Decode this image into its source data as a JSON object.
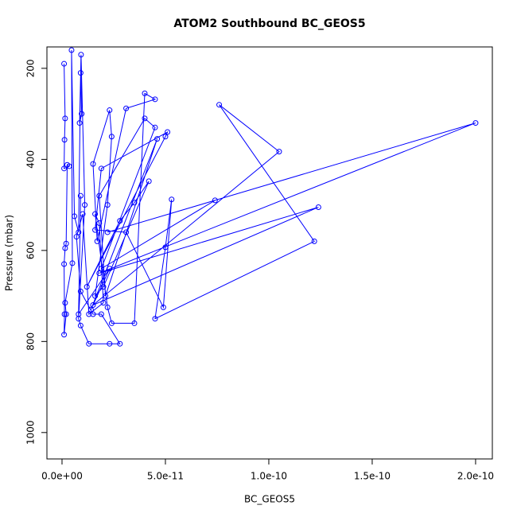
{
  "chart_data": {
    "type": "line",
    "title": "ATOM2 Southbound BC_GEOS5",
    "x_label": "BC_GEOS5",
    "y_label": "Pressure (mbar)",
    "xlim": [
      -7.3e-12,
      2.081e-10
    ],
    "ylim": [
      1058,
      153
    ],
    "xticks": [
      {
        "value": 0,
        "label": "0.0e+00"
      },
      {
        "value": 5e-11,
        "label": "5.0e-11"
      },
      {
        "value": 1e-10,
        "label": "1.0e-10"
      },
      {
        "value": 1.5e-10,
        "label": "1.5e-10"
      },
      {
        "value": 2e-10,
        "label": "2.0e-10"
      }
    ],
    "yticks": [
      200,
      400,
      600,
      800,
      1000
    ],
    "series": [
      {
        "color": "#0000ff",
        "x": [
          1e-12,
          1.5e-12,
          1.2e-12,
          1e-12,
          3.5e-12,
          2.5e-12,
          2e-12,
          1.5e-12,
          1e-12,
          1.2e-12,
          1e-12,
          2e-12,
          1.5e-12,
          5e-12,
          4.6e-12,
          6e-12,
          8e-12,
          9e-12,
          9.5e-12,
          8.5e-12,
          9.2e-12,
          1.1e-11,
          8e-12,
          9e-12,
          1.3e-11,
          2.3e-11,
          2.8e-11,
          1.9e-11,
          1.5e-11,
          9e-12,
          7e-12,
          1e-11,
          1.3e-11,
          2e-11,
          1.8e-11,
          1.6e-11,
          2.2e-11,
          2.4e-11,
          3.5e-11,
          4e-11,
          4.5e-11,
          3.1e-11,
          1.7e-11,
          1.5e-11,
          2.3e-11,
          2.4e-11,
          2.2e-11,
          1.6e-11,
          2e-11,
          4.2e-11,
          3.5e-11,
          2.8e-11,
          1.2e-11,
          5e-11,
          5.1e-11,
          1.9e-11,
          1.6e-11,
          3.1e-11,
          4.9e-11,
          5.3e-11,
          5e-11,
          4.5e-11,
          1.22e-10,
          7.6e-11,
          1.05e-10,
          1.5e-11,
          1.24e-10,
          1.8e-11,
          2e-10,
          2.2e-11,
          7.4e-11,
          1.9e-11,
          4.5e-11,
          4e-11,
          1.8e-11,
          2.1e-11,
          4.6e-11,
          1.4e-11,
          2.3e-11,
          8e-12,
          9e-12
        ],
        "values": [
          190,
          310,
          357,
          420,
          415,
          412,
          585,
          595,
          630,
          740,
          785,
          740,
          715,
          628,
          160,
          525,
          560,
          210,
          300,
          320,
          170,
          500,
          750,
          765,
          805,
          805,
          805,
          740,
          740,
          690,
          570,
          520,
          740,
          715,
          540,
          520,
          725,
          760,
          760,
          255,
          268,
          288,
          580,
          410,
          292,
          350,
          500,
          700,
          680,
          448,
          495,
          535,
          680,
          350,
          340,
          420,
          555,
          560,
          725,
          488,
          593,
          750,
          580,
          280,
          383,
          720,
          505,
          650,
          320,
          560,
          490,
          640,
          330,
          310,
          480,
          700,
          355,
          730,
          640,
          740,
          480
        ]
      }
    ]
  }
}
